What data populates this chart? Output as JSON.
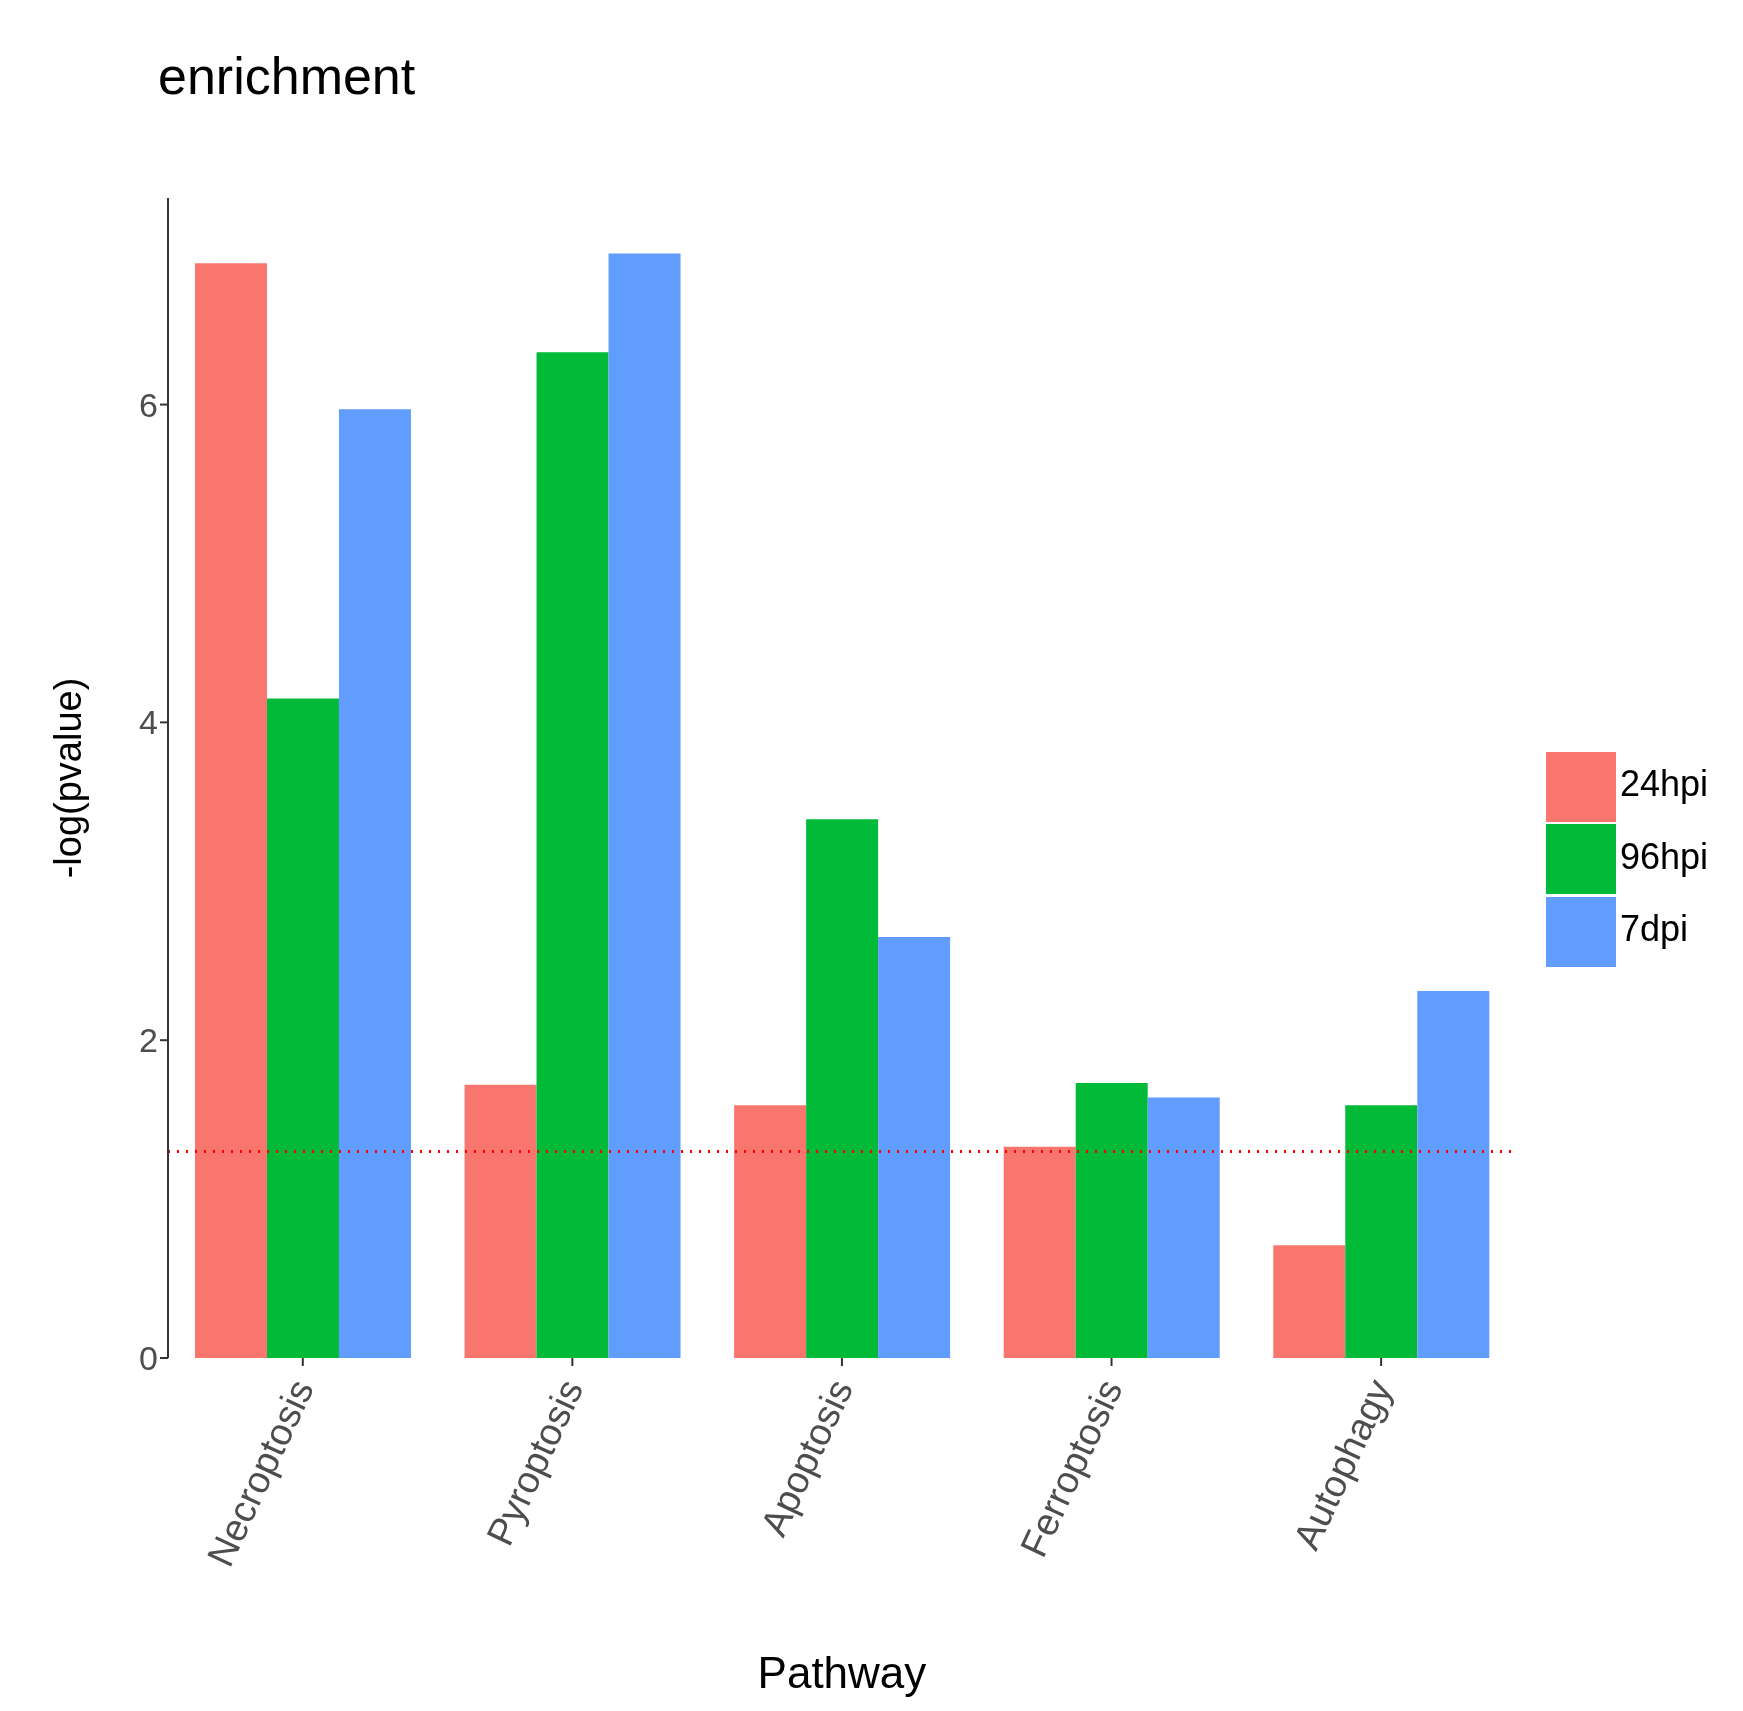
{
  "chart_data": {
    "type": "bar",
    "title": "enrichment",
    "xlabel": "Pathway",
    "ylabel": "-log(pvalue)",
    "categories": [
      "Necroptosis",
      "Pyroptosis",
      "Apoptosis",
      "Ferroptosis",
      "Autophagy"
    ],
    "series": [
      {
        "name": "24hpi",
        "color": "#f8766d",
        "values": [
          6.89,
          1.72,
          1.59,
          1.33,
          0.71
        ]
      },
      {
        "name": "96hpi",
        "color": "#00ba38",
        "values": [
          4.15,
          6.33,
          3.39,
          1.73,
          1.59
        ]
      },
      {
        "name": "7dpi",
        "color": "#619cff",
        "values": [
          5.97,
          6.95,
          2.65,
          1.64,
          2.31
        ]
      }
    ],
    "ylim": [
      0,
      7.3
    ],
    "yticks": [
      0,
      2,
      4,
      6
    ],
    "grid": false,
    "legend": "right",
    "ref_lines": [
      {
        "axis": "y",
        "value": 1.3,
        "color": "#ff0000",
        "line_style": "dotted"
      }
    ]
  }
}
